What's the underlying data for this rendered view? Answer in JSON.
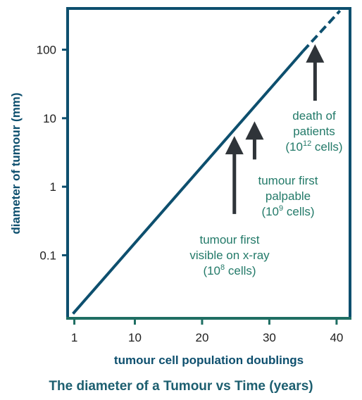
{
  "caption": "The diameter of a Tumour vs Time (years)",
  "colors": {
    "frame": "#0d4f6e",
    "axis_bottom": "#1f6e63",
    "line": "#0d4f6e",
    "arrow": "#2f3439",
    "annotation_text": "#237a69",
    "caption": "#1d5f70"
  },
  "chart_data": {
    "type": "line",
    "title": "",
    "xlabel": "tumour cell population doublings",
    "ylabel": "diameter of tumour (mm)",
    "x_ticks": [
      1,
      10,
      20,
      30,
      40
    ],
    "x_tick_labels": [
      "1",
      "10",
      "20",
      "30",
      "40"
    ],
    "y_scale": "log",
    "y_ticks": [
      0.1,
      1,
      10,
      100
    ],
    "y_tick_labels": [
      "0.1",
      "1",
      "10",
      "100"
    ],
    "xlim": [
      0,
      42
    ],
    "ylim": [
      0.012,
      400
    ],
    "series": [
      {
        "style": "solid",
        "x": [
          0.8,
          35
        ],
        "y": [
          0.014,
          95
        ]
      },
      {
        "style": "dashed",
        "x": [
          35,
          40.5
        ],
        "y": [
          95,
          370
        ]
      }
    ],
    "annotations": [
      {
        "lines": [
          "tumour first",
          "visible on x-ray"
        ],
        "count_prefix": "(10",
        "count_exp": "8",
        "count_suffix": " cells)",
        "arrow_x": 24.8,
        "arrow_tip_y": 5.5,
        "arrow_tail_y": 0.4
      },
      {
        "lines": [
          "tumour first",
          "palpable"
        ],
        "count_prefix": "(10",
        "count_exp": "9",
        "count_suffix": " cells)",
        "arrow_x": 27.8,
        "arrow_tip_y": 9,
        "arrow_tail_y": 2.5
      },
      {
        "lines": [
          "death of",
          "patients"
        ],
        "count_prefix": "(10",
        "count_exp": "12",
        "count_suffix": " cells)",
        "arrow_x": 36.8,
        "arrow_tip_y": 120,
        "arrow_tail_y": 18
      }
    ]
  }
}
